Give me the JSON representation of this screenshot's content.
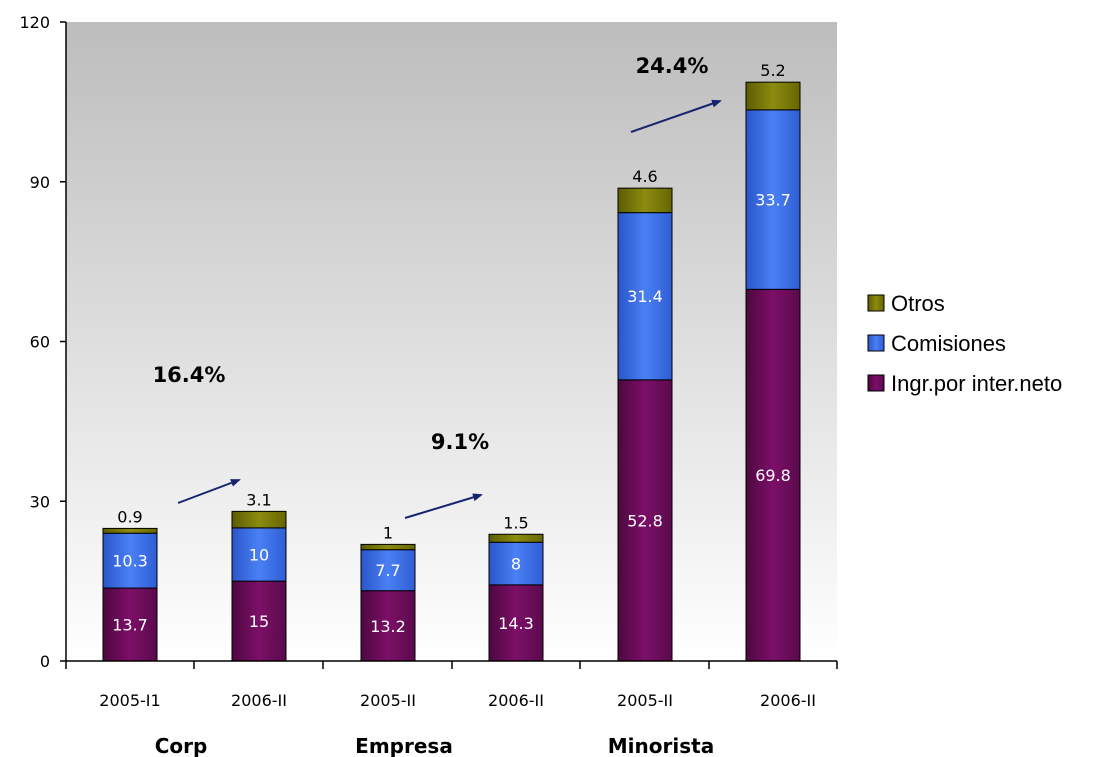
{
  "chart_data": {
    "type": "bar",
    "stacked": true,
    "title": "",
    "xlabel": "",
    "ylabel": "",
    "ylim": [
      0,
      120
    ],
    "yticks": [
      0,
      30,
      60,
      90,
      120
    ],
    "categories": [
      "2005-I1",
      "2006-II",
      "2005-II",
      "2006-II",
      "2005-II",
      "2006-II"
    ],
    "groups": [
      "Corp",
      "Empresa",
      "Minorista"
    ],
    "series": [
      {
        "name": "Ingr.por inter.neto",
        "color": "#6e0c5a",
        "values": [
          13.7,
          15,
          13.2,
          14.3,
          52.8,
          69.8
        ],
        "labels": [
          "13.7",
          "15",
          "13.2",
          "14.3",
          "52.8",
          "69.8"
        ]
      },
      {
        "name": "Comisiones",
        "color": "#3b6ee8",
        "values": [
          10.3,
          10,
          7.7,
          8,
          31.4,
          33.7
        ],
        "labels": [
          "10.3",
          "10",
          "7.7",
          "8",
          "31.4",
          "33.7"
        ]
      },
      {
        "name": "Otros",
        "color": "#7a7a00",
        "values": [
          0.9,
          3.1,
          1,
          1.5,
          4.6,
          5.2
        ],
        "labels": [
          "0.9",
          "3.1",
          "1",
          "1.5",
          "4.6",
          "5.2"
        ]
      }
    ],
    "growth_annotations": [
      "16.4%",
      "9.1%",
      "24.4%"
    ],
    "legend_position": "right",
    "legend_order": [
      "Otros",
      "Comisiones",
      "Ingr.por inter.neto"
    ],
    "background": "gradient gray to white",
    "grid": false
  }
}
